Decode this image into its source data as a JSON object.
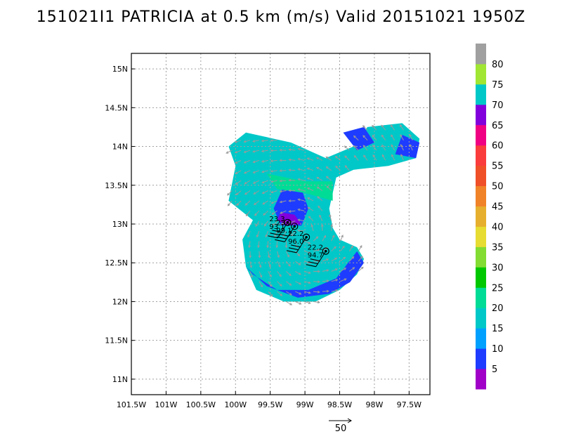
{
  "title": "151021I1 PATRICIA at 0.5 km (m/s) Valid 20151021 1950Z",
  "colors": {
    "frame": "#000000",
    "grid": "#a0a0a0",
    "vector": "#9a9a9a"
  },
  "chart_data": {
    "type": "heatmap",
    "title": "151021I1 PATRICIA at 0.5 km (m/s) Valid 20151021 1950Z",
    "xlim": [
      -101.5,
      -97.2
    ],
    "ylim": [
      10.8,
      15.2
    ],
    "grid": true,
    "x_ticks": [
      {
        "value": -101.5,
        "label": "101.5W"
      },
      {
        "value": -101.0,
        "label": "101W"
      },
      {
        "value": -100.5,
        "label": "100.5W"
      },
      {
        "value": -100.0,
        "label": "100W"
      },
      {
        "value": -99.5,
        "label": "99.5W"
      },
      {
        "value": -99.0,
        "label": "99W"
      },
      {
        "value": -98.5,
        "label": "98.5W"
      },
      {
        "value": -98.0,
        "label": "98W"
      },
      {
        "value": -97.5,
        "label": "97.5W"
      }
    ],
    "y_ticks": [
      {
        "value": 11.0,
        "label": "11N"
      },
      {
        "value": 11.5,
        "label": "11.5N"
      },
      {
        "value": 12.0,
        "label": "12N"
      },
      {
        "value": 12.5,
        "label": "12.5N"
      },
      {
        "value": 13.0,
        "label": "13N"
      },
      {
        "value": 13.5,
        "label": "13.5N"
      },
      {
        "value": 14.0,
        "label": "14N"
      },
      {
        "value": 14.5,
        "label": "14.5N"
      },
      {
        "value": 15.0,
        "label": "15N"
      }
    ],
    "colorbar": {
      "levels": [
        {
          "label": "5",
          "color": "#a000c8"
        },
        {
          "label": "10",
          "color": "#1e3cff"
        },
        {
          "label": "15",
          "color": "#00a0ff"
        },
        {
          "label": "20",
          "color": "#00c8c8"
        },
        {
          "label": "25",
          "color": "#00dc96"
        },
        {
          "label": "30",
          "color": "#00c800"
        },
        {
          "label": "35",
          "color": "#82dc32"
        },
        {
          "label": "40",
          "color": "#e6dc32"
        },
        {
          "label": "45",
          "color": "#e6af2d"
        },
        {
          "label": "50",
          "color": "#f08228"
        },
        {
          "label": "55",
          "color": "#f05028"
        },
        {
          "label": "60",
          "color": "#fa3c3c"
        },
        {
          "label": "65",
          "color": "#f00082"
        },
        {
          "label": "70",
          "color": "#8200dc"
        },
        {
          "label": "75",
          "color": "#00c8c8"
        },
        {
          "label": "80",
          "color": "#a0e632"
        },
        {
          "label": "",
          "color": "#a0a0a0"
        }
      ]
    },
    "wind_regions": [
      {
        "level": "20",
        "polygon": [
          [
            -99.85,
            14.18
          ],
          [
            -99.2,
            14.05
          ],
          [
            -98.7,
            13.85
          ],
          [
            -98.3,
            14.0
          ],
          [
            -98.1,
            14.25
          ],
          [
            -97.6,
            14.3
          ],
          [
            -97.35,
            14.1
          ],
          [
            -97.4,
            13.85
          ],
          [
            -97.8,
            13.75
          ],
          [
            -98.3,
            13.7
          ],
          [
            -98.55,
            13.6
          ],
          [
            -98.65,
            13.2
          ],
          [
            -98.6,
            12.95
          ],
          [
            -98.5,
            12.8
          ],
          [
            -98.25,
            12.7
          ],
          [
            -98.15,
            12.55
          ],
          [
            -98.25,
            12.35
          ],
          [
            -98.5,
            12.15
          ],
          [
            -98.85,
            12.0
          ],
          [
            -99.3,
            12.0
          ],
          [
            -99.7,
            12.15
          ],
          [
            -99.85,
            12.45
          ],
          [
            -99.9,
            12.8
          ],
          [
            -99.75,
            13.05
          ],
          [
            -100.1,
            13.3
          ],
          [
            -100.0,
            13.75
          ],
          [
            -100.1,
            14.0
          ]
        ]
      },
      {
        "level": "10",
        "polygon": [
          [
            -99.85,
            12.45
          ],
          [
            -99.55,
            12.2
          ],
          [
            -99.1,
            12.05
          ],
          [
            -98.65,
            12.1
          ],
          [
            -98.35,
            12.25
          ],
          [
            -98.15,
            12.5
          ],
          [
            -98.25,
            12.65
          ],
          [
            -98.55,
            12.3
          ],
          [
            -98.95,
            12.15
          ],
          [
            -99.4,
            12.15
          ],
          [
            -99.75,
            12.35
          ]
        ]
      },
      {
        "level": "10",
        "polygon": [
          [
            -98.45,
            14.18
          ],
          [
            -98.15,
            14.25
          ],
          [
            -98.0,
            14.05
          ],
          [
            -98.25,
            13.95
          ]
        ]
      },
      {
        "level": "10",
        "polygon": [
          [
            -97.6,
            14.15
          ],
          [
            -97.35,
            14.05
          ],
          [
            -97.4,
            13.85
          ],
          [
            -97.7,
            13.9
          ]
        ]
      },
      {
        "level": "10",
        "polygon": [
          [
            -99.3,
            13.5
          ],
          [
            -99.05,
            13.45
          ],
          [
            -98.95,
            13.2
          ],
          [
            -99.05,
            12.98
          ],
          [
            -99.35,
            12.98
          ],
          [
            -99.45,
            13.2
          ]
        ]
      },
      {
        "level": "25",
        "polygon": [
          [
            -99.55,
            13.65
          ],
          [
            -99.0,
            13.55
          ],
          [
            -98.6,
            13.55
          ],
          [
            -98.6,
            13.3
          ],
          [
            -99.0,
            13.4
          ],
          [
            -99.4,
            13.45
          ]
        ]
      },
      {
        "level": "70",
        "polygon": [
          [
            -99.35,
            13.15
          ],
          [
            -99.15,
            13.12
          ],
          [
            -99.05,
            13.0
          ],
          [
            -99.25,
            12.98
          ],
          [
            -99.4,
            13.05
          ]
        ]
      }
    ],
    "storm_centers": [
      {
        "lon": -99.25,
        "lat": 13.02,
        "label": "23.3",
        "value": "93.1"
      },
      {
        "lon": -99.15,
        "lat": 12.97,
        "label": "23.2",
        "value": "99.1"
      },
      {
        "lon": -98.98,
        "lat": 12.83,
        "label": "22.2",
        "value": "96.0"
      },
      {
        "lon": -98.7,
        "lat": 12.65,
        "label": "22.2",
        "value": "94.7"
      }
    ],
    "reference_vector": {
      "label": "50"
    }
  }
}
